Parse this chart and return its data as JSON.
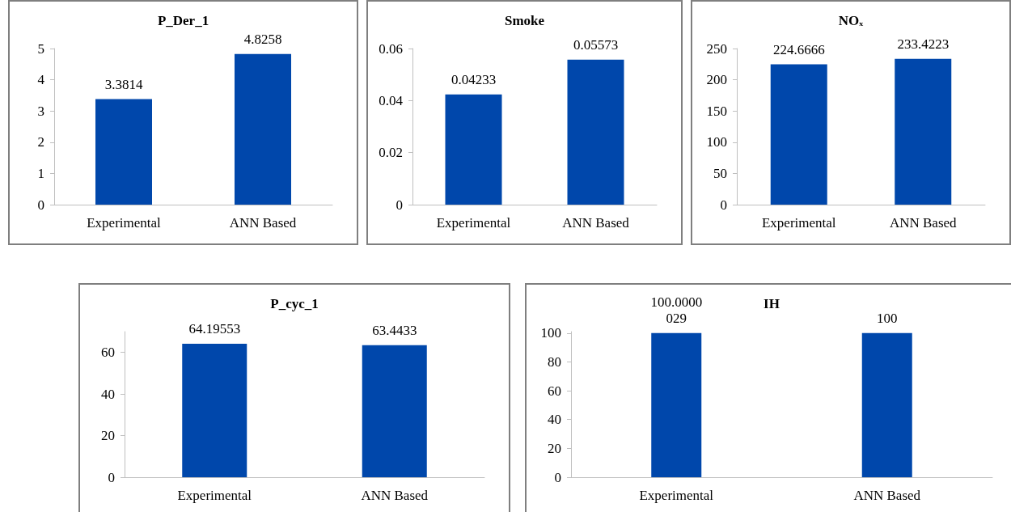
{
  "chart_data": [
    {
      "type": "bar",
      "title": "P_Der_1",
      "categories": [
        "Experimental",
        "ANN Based"
      ],
      "values": [
        3.3814,
        4.8258
      ],
      "color": "#0047ab",
      "ylim": [
        0,
        5
      ],
      "yticks": [
        0,
        1,
        2,
        3,
        4,
        5
      ],
      "grid": false,
      "data_labels": true
    },
    {
      "type": "bar",
      "title": "Smoke",
      "categories": [
        "Experimental",
        "ANN Based"
      ],
      "values": [
        0.04233,
        0.05573
      ],
      "color": "#0047ab",
      "ylim": [
        0,
        0.06
      ],
      "yticks": [
        0,
        0.02,
        0.04,
        0.06
      ],
      "grid": false,
      "data_labels": true
    },
    {
      "type": "bar",
      "title": "NOₓ",
      "categories": [
        "Experimental",
        "ANN Based"
      ],
      "values": [
        224.6666,
        233.4223
      ],
      "color": "#0047ab",
      "ylim": [
        0,
        250
      ],
      "yticks": [
        0,
        50,
        100,
        150,
        200,
        250
      ],
      "grid": false,
      "data_labels": true
    },
    {
      "type": "bar",
      "title": "P_cyc_1",
      "categories": [
        "Experimental",
        "ANN Based"
      ],
      "values": [
        64.19553,
        63.4433
      ],
      "color": "#0047ab",
      "ylim": [
        0,
        70
      ],
      "yticks": [
        0,
        20,
        40,
        60
      ],
      "grid": false,
      "data_labels": true
    },
    {
      "type": "bar",
      "title": "IH",
      "categories": [
        "Experimental",
        "ANN Based"
      ],
      "values": [
        100.0000029,
        100
      ],
      "color": "#0047ab",
      "ylim": [
        0,
        101
      ],
      "yticks": [
        0,
        20,
        40,
        60,
        80,
        100
      ],
      "grid": false,
      "data_labels": true
    }
  ]
}
